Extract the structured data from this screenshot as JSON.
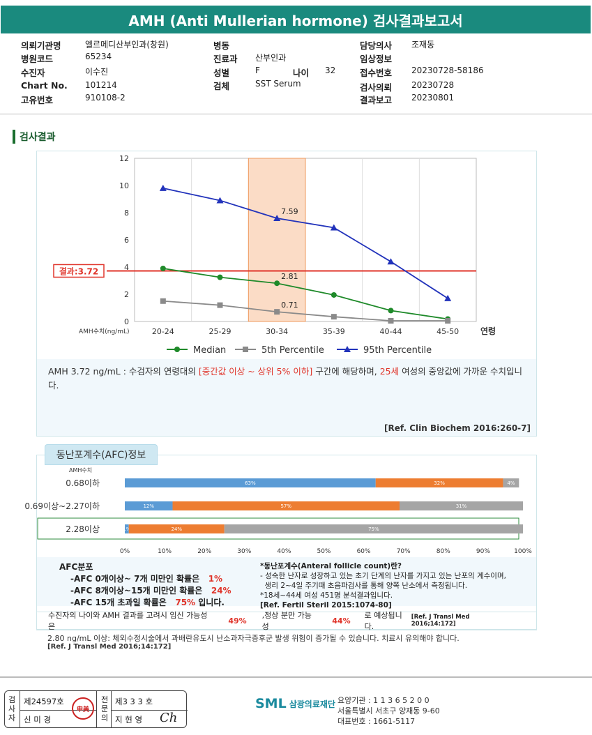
{
  "report_title": "AMH (Anti Mullerian hormone) 검사결과보고서",
  "info": {
    "hospital_label": "의뢰기관명",
    "hospital": "엘르메디산부인과(창원)",
    "code_label": "병원코드",
    "code": "65234",
    "patient_label": "수진자",
    "patient": "이수진",
    "chart_label": "Chart No.",
    "chart": "101214",
    "unique_label": "고유번호",
    "unique": "910108-2",
    "ward_label": "병동",
    "ward": "",
    "dept_label": "진료과",
    "dept": "산부인과",
    "sex_label": "성별",
    "sex": "F",
    "age_label": "나이",
    "age": "32",
    "specimen_label": "검체",
    "specimen": "SST Serum",
    "doctor_label": "담당의사",
    "doctor": "조재동",
    "clinical_label": "임상정보",
    "clinical": "",
    "receipt_label": "접수번호",
    "receipt": "20230728-58186",
    "request_label": "검사의뢰",
    "request": "20230728",
    "report_label": "결과보고",
    "report": "20230801"
  },
  "section_title": "검사결과",
  "chart_data": {
    "type": "line",
    "categories": [
      "20-24",
      "25-29",
      "30-34",
      "35-39",
      "40-44",
      "45-50"
    ],
    "x_axis_end_label": "연령",
    "y_axis_label": "AMH수치(ng/mL)",
    "ylim": [
      0,
      12
    ],
    "yticks": [
      0,
      2,
      4,
      6,
      8,
      10,
      12
    ],
    "grid": "vertical",
    "highlight_category": "30-34",
    "result_line": {
      "value": 3.72,
      "label": "결과:3.72",
      "color": "#e0352b"
    },
    "series": [
      {
        "name": "Median",
        "color": "#1f8a2a",
        "marker": "circle",
        "values": [
          3.9,
          3.25,
          2.81,
          1.95,
          0.8,
          0.18
        ]
      },
      {
        "name": "5th Percentile",
        "color": "#8a8a8a",
        "marker": "square",
        "values": [
          1.5,
          1.2,
          0.71,
          0.35,
          0.05,
          0.05
        ]
      },
      {
        "name": "95th Percentile",
        "color": "#2233bb",
        "marker": "triangle",
        "values": [
          9.8,
          8.9,
          7.59,
          6.9,
          4.4,
          1.7
        ]
      }
    ],
    "data_labels": [
      {
        "series": "95th Percentile",
        "category": "30-34",
        "text": "7.59"
      },
      {
        "series": "Median",
        "category": "30-34",
        "text": "2.81"
      },
      {
        "series": "5th Percentile",
        "category": "30-34",
        "text": "0.71"
      }
    ],
    "legend_position": "bottom"
  },
  "comment": {
    "p1": "AMH  3.72 ng/mL : 수검자의 연령대의 ",
    "r1": "[중간값 이상 ~ 상위 5% 이하]",
    "p2": " 구간에 해당하며, ",
    "r2": "25세",
    "p3": " 여성의 중앙값에 가까운 수치입니다."
  },
  "ref1": "[Ref. Clin Biochem 2016:260-7]",
  "afc": {
    "title": "동난포계수(AFC)정보",
    "amh_label": "AMH수치",
    "rows": [
      {
        "label": "0.68이하",
        "segments": [
          {
            "value": 63,
            "text": "63%",
            "color": "#5b9bd5"
          },
          {
            "value": 32,
            "text": "32%",
            "color": "#ed7d31"
          },
          {
            "value": 4,
            "text": "4%",
            "color": "#a5a5a5"
          }
        ]
      },
      {
        "label": "0.69이상~2.27이하",
        "segments": [
          {
            "value": 12,
            "text": "12%",
            "color": "#5b9bd5"
          },
          {
            "value": 57,
            "text": "57%",
            "color": "#ed7d31"
          },
          {
            "value": 31,
            "text": "31%",
            "color": "#a5a5a5"
          }
        ]
      },
      {
        "label": "2.28이상",
        "highlight": true,
        "segments": [
          {
            "value": 1,
            "text": "1%",
            "color": "#5b9bd5"
          },
          {
            "value": 24,
            "text": "24%",
            "color": "#ed7d31"
          },
          {
            "value": 75,
            "text": "75%",
            "color": "#a5a5a5"
          }
        ]
      }
    ],
    "xticks": [
      "0%",
      "10%",
      "20%",
      "30%",
      "40%",
      "50%",
      "60%",
      "70%",
      "80%",
      "90%",
      "100%"
    ],
    "dist_title": "AFC분포",
    "dist": [
      {
        "text": "-AFC 0개이상~ 7개 미만인 확률은",
        "value": "1%",
        "tail": ""
      },
      {
        "text": "-AFC 8개이상~15개 미만인 확률은",
        "value": "24%",
        "tail": ""
      },
      {
        "text": "-AFC 15개 초과일 확률은",
        "value": "75%",
        "tail": "입니다."
      }
    ],
    "def_title": "*동난포계수(Anteral follicle count)란?",
    "def1": "- 성숙한 난자로 성장하고 있는 초기 단계의 난자를 가지고 있는 난포의 계수이며,",
    "def2": "  생리 2~4일 주기때 초음파검사를 통해 양쪽 난소에서 측정됩니다.",
    "def3": "*18세~44세 여성 451명 분석결과입니다.",
    "def_ref": "[Ref. Fertil Steril 2015:1074-80]",
    "summary_p1": "수진자의 나이와 AMH 결과를 고려시 임신 가능성은",
    "summary_v1": "49%",
    "summary_p2": ",정상 분만 가능성",
    "summary_v2": "44%",
    "summary_p3": "로 예상됩니다.",
    "summary_ref": "[Ref. J Transl Med 2016;14:172]"
  },
  "warning": "2.80  ng/mL  이상: 체외수정시술에서 과배란유도시 난소과자극증후군 발생 위험이 증가될 수 있습니다. 치료시 유의해야 합니다.",
  "warning_ref": "[Ref. J Transl Med 2016;14:172]",
  "sign": {
    "left_vert": "검사자",
    "left_no": "제24597호",
    "left_name": "신 미 경",
    "stamp": "申美",
    "right_vert": "전문의",
    "right_no": "제3 3 3 호",
    "right_name": "지 현 영",
    "signature": "Ch"
  },
  "org": {
    "logo": "SML",
    "name": "삼광의료재단",
    "line1": "요양기관 : 1 1 3 6 5 2 0 0",
    "line2": "서울특별시 서초구 양재동 9-60",
    "line3": "대표번호 : 1661-5117"
  }
}
